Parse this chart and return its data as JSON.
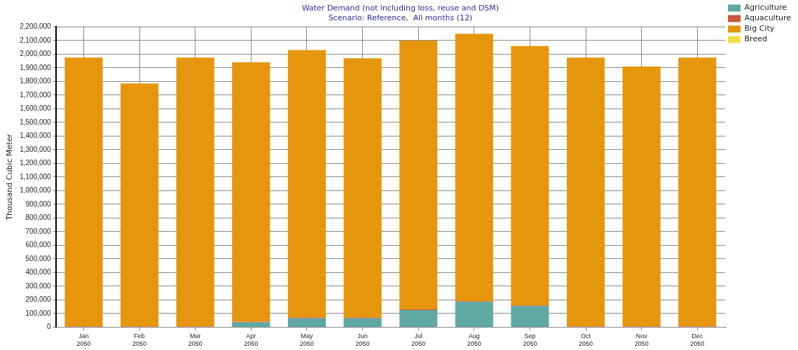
{
  "chart_data": {
    "type": "bar",
    "title": "Water Demand (not including loss, reuse and DSM)",
    "subtitle": "Scenario: Reference,  All months (12)",
    "ylabel": "Thousand Cubic Meter",
    "categories": [
      "Jan\n2050",
      "Feb\n2050",
      "Mar\n2050",
      "Apr\n2050",
      "May\n2050",
      "Jun\n2050",
      "Jul\n2050",
      "Aug\n2050",
      "Sep\n2050",
      "Oct\n2050",
      "Nov\n2050",
      "Dec\n2050"
    ],
    "stacked": true,
    "series": [
      {
        "name": "Agriculture",
        "color": "#5fa8a4",
        "values": [
          0,
          0,
          0,
          35000,
          65000,
          65000,
          125000,
          185000,
          155000,
          0,
          0,
          0
        ]
      },
      {
        "name": "Aquaculture",
        "color": "#c8563a",
        "values": [
          5000,
          5000,
          5000,
          5000,
          5000,
          5000,
          5000,
          5000,
          5000,
          5000,
          5000,
          5000
        ]
      },
      {
        "name": "Big City",
        "color": "#e5960c",
        "values": [
          1970000,
          1780000,
          1970000,
          1900000,
          1960000,
          1900000,
          1970000,
          1960000,
          1900000,
          1970000,
          1905000,
          1970000
        ]
      },
      {
        "name": "Breed",
        "color": "#f2e04a",
        "values": [
          0,
          0,
          0,
          0,
          0,
          0,
          0,
          0,
          0,
          0,
          0,
          0
        ]
      }
    ],
    "ylim": [
      0,
      2200000
    ],
    "yticks": [
      0,
      {
        "value": 100000,
        "label": "100,000"
      },
      {
        "value": 200000,
        "label": "200,000"
      },
      {
        "value": 300000,
        "label": "300,000"
      },
      {
        "value": 400000,
        "label": "400,000"
      },
      {
        "value": 500000,
        "label": "500,000"
      },
      {
        "value": 600000,
        "label": "600,000"
      },
      {
        "value": 700000,
        "label": "700,000"
      },
      {
        "value": 800000,
        "label": "800,000"
      },
      {
        "value": 900000,
        "label": "900,000"
      },
      {
        "value": 1000000,
        "label": "1,000,000"
      },
      {
        "value": 1100000,
        "label": "1,100,000"
      },
      {
        "value": 1200000,
        "label": "1,200,000"
      },
      {
        "value": 1300000,
        "label": "1,300,000"
      },
      {
        "value": 1400000,
        "label": "1,400,000"
      },
      {
        "value": 1500000,
        "label": "1,500,000"
      },
      {
        "value": 1600000,
        "label": "1,600,000"
      },
      {
        "value": 1700000,
        "label": "1,700,000"
      },
      {
        "value": 1800000,
        "label": "1,800,000"
      },
      {
        "value": 1900000,
        "label": "1,900,000"
      },
      {
        "value": 2000000,
        "label": "2,000,000"
      },
      {
        "value": 2100000,
        "label": "2,100,000"
      },
      {
        "value": 2200000,
        "label": "2,200,000"
      }
    ],
    "grid": true,
    "legend": "top right"
  }
}
